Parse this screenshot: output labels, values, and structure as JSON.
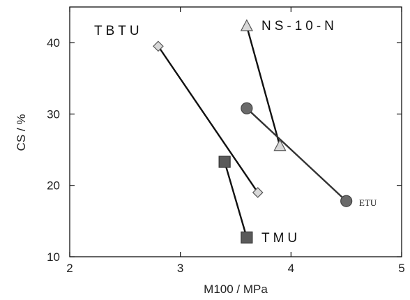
{
  "chart_data": {
    "type": "line",
    "xlabel": "M100 / MPa",
    "ylabel": "CS / %",
    "xlim": [
      2,
      5
    ],
    "ylim": [
      10,
      45
    ],
    "xticks": [
      2,
      3,
      4,
      5
    ],
    "yticks": [
      10,
      20,
      30,
      40
    ],
    "grid": false,
    "series": [
      {
        "name": "TBTU",
        "marker": "diamond",
        "line_color": "#111111",
        "marker_fill": "#d8d8d8",
        "marker_stroke": "#555555",
        "points": [
          {
            "x": 2.8,
            "y": 39.5
          },
          {
            "x": 3.7,
            "y": 19.0
          }
        ]
      },
      {
        "name": "NS-10-N",
        "marker": "triangle",
        "line_color": "#111111",
        "marker_fill": "#d8d8d8",
        "marker_stroke": "#555555",
        "points": [
          {
            "x": 3.6,
            "y": 42.3
          },
          {
            "x": 3.9,
            "y": 25.5
          }
        ]
      },
      {
        "name": "ETU",
        "marker": "circle",
        "line_color": "#333333",
        "marker_fill": "#6a6a6a",
        "marker_stroke": "#444444",
        "points": [
          {
            "x": 3.6,
            "y": 30.8
          },
          {
            "x": 4.5,
            "y": 17.8
          }
        ]
      },
      {
        "name": "TMU",
        "marker": "square",
        "line_color": "#111111",
        "marker_fill": "#5a5a5a",
        "marker_stroke": "#333333",
        "points": [
          {
            "x": 3.4,
            "y": 23.3
          },
          {
            "x": 3.6,
            "y": 12.7
          }
        ]
      }
    ]
  }
}
